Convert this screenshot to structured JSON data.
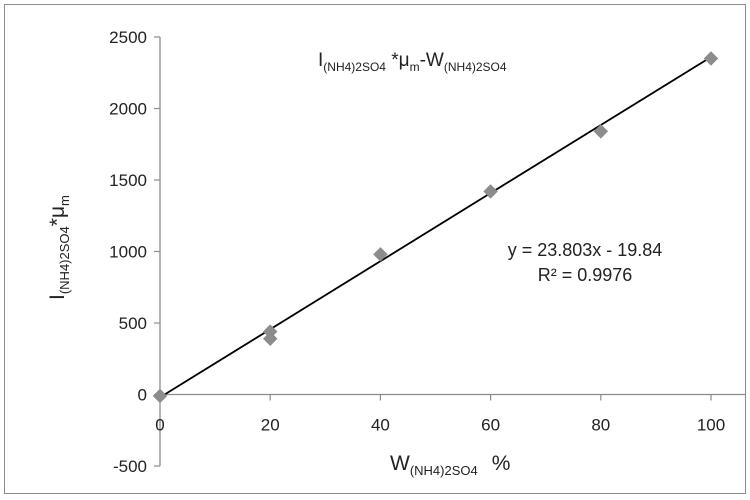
{
  "chart_data": {
    "type": "scatter",
    "title": {
      "part1": "I",
      "part1_sub": "(NH4)2SO4",
      "part2": " *μ",
      "part2_sub": "m",
      "part3": "-W",
      "part3_sub": "(NH4)2SO4"
    },
    "xlabel": {
      "main": "W",
      "sub": "(NH4)2SO4",
      "unit": "%"
    },
    "ylabel": {
      "part1": "I",
      "part1_sub": "(NH4)2SO4",
      "part2": "*μ",
      "part2_sub": "m"
    },
    "xlim": [
      0,
      100
    ],
    "ylim": [
      -500,
      2500
    ],
    "x_ticks": [
      0,
      20,
      40,
      60,
      80,
      100
    ],
    "x_tick_labels": [
      "0",
      "20",
      "40",
      "60",
      "80",
      "100"
    ],
    "y_ticks": [
      -500,
      0,
      500,
      1000,
      1500,
      2000,
      2500
    ],
    "y_tick_labels": [
      "-500",
      "0",
      "500",
      "1000",
      "1500",
      "2000",
      "2500"
    ],
    "series": [
      {
        "marker": "diamond",
        "color": "#8c8c8c",
        "x": [
          0,
          20,
          20,
          40,
          60,
          80,
          100
        ],
        "y": [
          -10,
          440,
          390,
          980,
          1420,
          1840,
          2350
        ]
      }
    ],
    "trendline": {
      "type": "linear",
      "slope": 23.803,
      "intercept": -19.84,
      "color": "#000000",
      "x_range": [
        0,
        100
      ]
    },
    "annotations": {
      "equation": "y = 23.803x - 19.84",
      "r_squared": "R² = 0.9976"
    },
    "grid": false,
    "legend": "none"
  }
}
